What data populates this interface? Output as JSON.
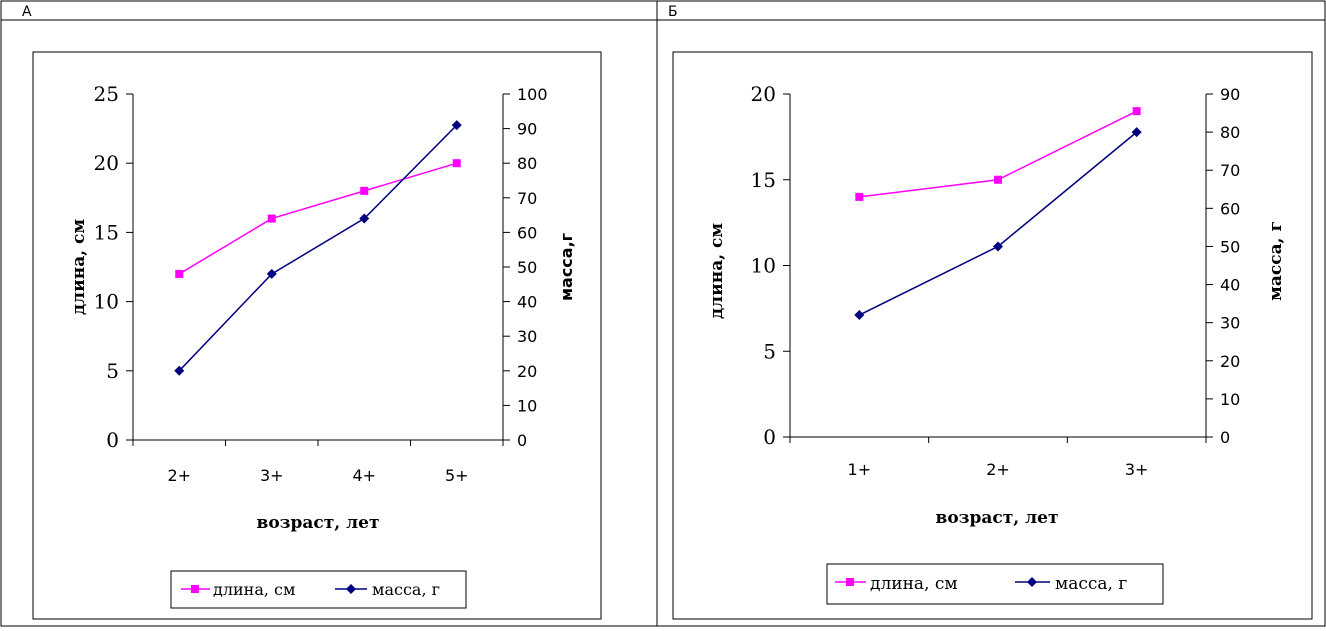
{
  "panels": [
    {
      "label": "А",
      "chart_data": {
        "type": "line",
        "categories": [
          "2+",
          "3+",
          "4+",
          "5+"
        ],
        "xlabel": "возраст, лет",
        "ylabel": "длина, см",
        "y2label": "масса,г",
        "ylim": [
          0,
          25
        ],
        "yticks": [
          0,
          5,
          10,
          15,
          20,
          25
        ],
        "y2lim": [
          0,
          100
        ],
        "y2ticks": [
          0,
          10,
          20,
          30,
          40,
          50,
          60,
          70,
          80,
          90,
          100
        ],
        "series": [
          {
            "name": "длина, см",
            "axis": "left",
            "marker": "square",
            "color": "#ff00ff",
            "values": [
              12,
              16,
              18,
              20
            ]
          },
          {
            "name": "масса, г",
            "axis": "right",
            "marker": "diamond",
            "color": "#000080",
            "values": [
              20,
              48,
              64,
              91
            ]
          }
        ],
        "legend": "bottom"
      }
    },
    {
      "label": "Б",
      "chart_data": {
        "type": "line",
        "categories": [
          "1+",
          "2+",
          "3+"
        ],
        "xlabel": "возраст, лет",
        "ylabel": "длина, см",
        "y2label": "масса, г",
        "ylim": [
          0,
          20
        ],
        "yticks": [
          0,
          5,
          10,
          15,
          20
        ],
        "y2lim": [
          0,
          90
        ],
        "y2ticks": [
          0,
          10,
          20,
          30,
          40,
          50,
          60,
          70,
          80,
          90
        ],
        "series": [
          {
            "name": "длина, см",
            "axis": "left",
            "marker": "square",
            "color": "#ff00ff",
            "values": [
              14,
              15,
              19
            ]
          },
          {
            "name": "масса, г",
            "axis": "right",
            "marker": "diamond",
            "color": "#000080",
            "values": [
              32,
              50,
              80
            ]
          }
        ],
        "legend": "bottom"
      }
    }
  ]
}
